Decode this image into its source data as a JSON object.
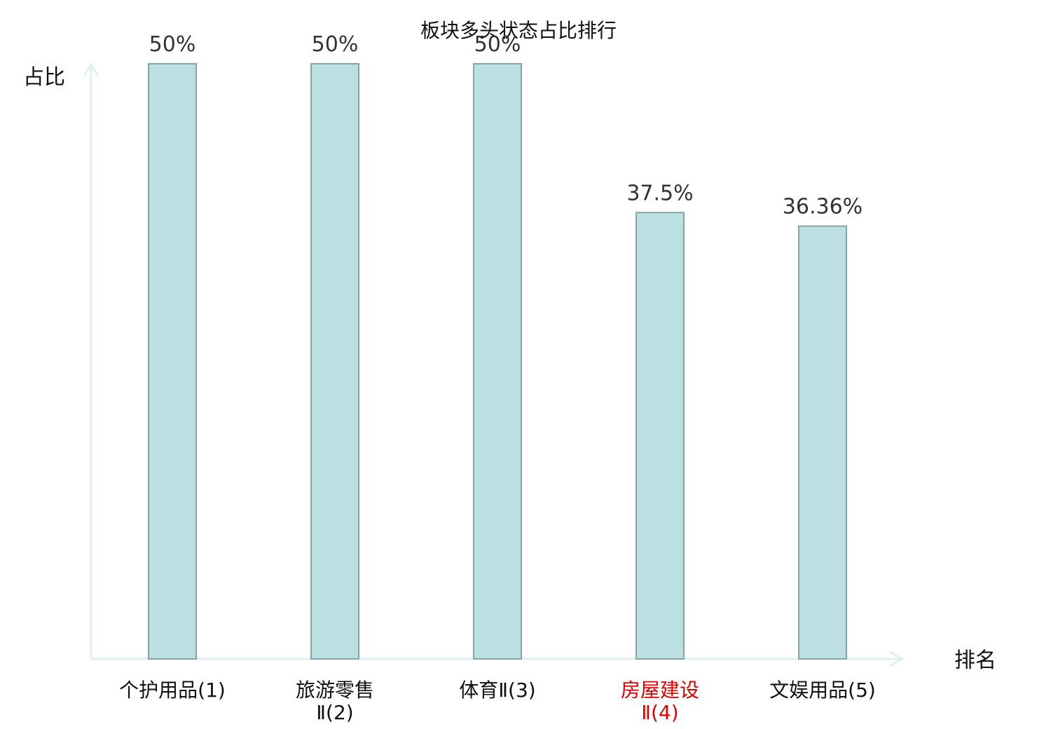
{
  "chart_data": {
    "type": "bar",
    "title": "板块多头状态占比排行",
    "xlabel": "排名",
    "ylabel": "占比",
    "categories": [
      {
        "line1": "个护用品(1)",
        "line2": "",
        "highlight": false
      },
      {
        "line1": "旅游零售",
        "line2": "Ⅱ(2)",
        "highlight": false
      },
      {
        "line1": "体育Ⅱ(3)",
        "line2": "",
        "highlight": false
      },
      {
        "line1": "房屋建设",
        "line2": "Ⅱ(4)",
        "highlight": true
      },
      {
        "line1": "文娱用品(5)",
        "line2": "",
        "highlight": false
      }
    ],
    "values": [
      50,
      50,
      50,
      37.5,
      36.36
    ],
    "value_labels": [
      "50%",
      "50%",
      "50%",
      "37.5%",
      "36.36%"
    ],
    "ylim": [
      0,
      50
    ],
    "grid": false,
    "legend": "none",
    "colors": {
      "bar_fill": "#bce0e2",
      "bar_stroke": "#86a4a6",
      "axis": "#dff0ee",
      "category_text": "#111111",
      "highlight_text": "#e00000"
    }
  }
}
